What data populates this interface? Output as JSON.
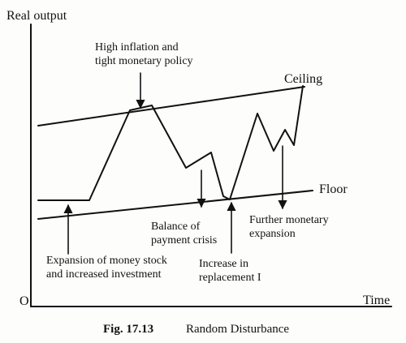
{
  "diagram": {
    "y_axis_label": "Real output",
    "x_axis_label": "Time",
    "origin_label": "O",
    "ceiling_label": "Ceiling",
    "floor_label": "Floor",
    "annotations": {
      "high_inflation": [
        "High  inflation and",
        "tight monetary policy"
      ],
      "expansion": [
        "Expansion of money stock",
        "and increased investment"
      ],
      "balance_crisis": [
        "Balance of",
        "payment crisis"
      ],
      "increase_replacement": [
        "Increase in",
        "replacement I"
      ],
      "further_expansion": [
        "Further monetary",
        "expansion"
      ]
    },
    "caption": {
      "figure_number": "Fig. 17.13",
      "title": "Random Disturbance"
    }
  }
}
